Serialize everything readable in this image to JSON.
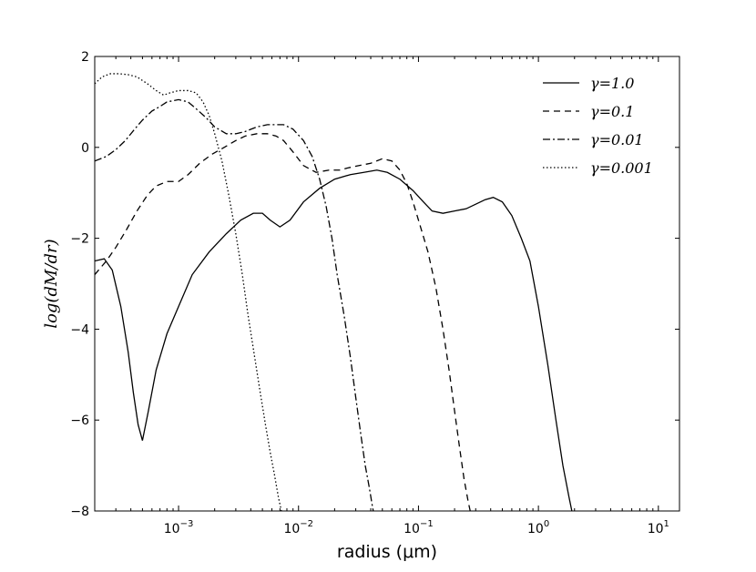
{
  "chart_data": {
    "type": "line",
    "xscale": "log",
    "xlim": [
      0.0002,
      15
    ],
    "ylim": [
      -8,
      2
    ],
    "xlabel": "radius (μm)",
    "ylabel": "log(dM/dr)",
    "yticks": [
      2,
      0,
      -2,
      -4,
      -6,
      -8
    ],
    "ytick_labels": [
      "2",
      "0",
      "−2",
      "−4",
      "−6",
      "−8"
    ],
    "xticks": [
      0.001,
      0.01,
      0.1,
      1,
      10
    ],
    "xtick_labels": [
      {
        "base": "10",
        "exp": "-3"
      },
      {
        "base": "10",
        "exp": "-2"
      },
      {
        "base": "10",
        "exp": "-1"
      },
      {
        "base": "10",
        "exp": "0"
      },
      {
        "base": "10",
        "exp": "1"
      }
    ],
    "legend_position": "top-right",
    "grid": false,
    "series": [
      {
        "name": "γ=1.0",
        "style": "solid",
        "x": [
          0.0002,
          0.00024,
          0.00028,
          0.00033,
          0.00038,
          0.00042,
          0.00046,
          0.0005,
          0.00056,
          0.00065,
          0.0008,
          0.001,
          0.0013,
          0.0018,
          0.0025,
          0.0033,
          0.0042,
          0.005,
          0.0058,
          0.007,
          0.0085,
          0.011,
          0.015,
          0.02,
          0.027,
          0.035,
          0.045,
          0.055,
          0.07,
          0.09,
          0.11,
          0.13,
          0.16,
          0.2,
          0.25,
          0.3,
          0.36,
          0.42,
          0.5,
          0.6,
          0.72,
          0.85,
          1.0,
          1.2,
          1.4,
          1.6,
          1.8,
          1.9
        ],
        "y": [
          -2.5,
          -2.45,
          -2.7,
          -3.5,
          -4.5,
          -5.4,
          -6.1,
          -6.45,
          -5.8,
          -4.9,
          -4.1,
          -3.5,
          -2.8,
          -2.3,
          -1.9,
          -1.6,
          -1.45,
          -1.45,
          -1.6,
          -1.75,
          -1.6,
          -1.2,
          -0.9,
          -0.7,
          -0.6,
          -0.55,
          -0.5,
          -0.55,
          -0.7,
          -0.95,
          -1.2,
          -1.4,
          -1.45,
          -1.4,
          -1.35,
          -1.25,
          -1.15,
          -1.1,
          -1.2,
          -1.5,
          -2.0,
          -2.5,
          -3.5,
          -4.8,
          -6.0,
          -7.0,
          -7.7,
          -8.0
        ]
      },
      {
        "name": "γ=0.1",
        "style": "dashed",
        "x": [
          0.0002,
          0.00025,
          0.0003,
          0.00037,
          0.00045,
          0.00055,
          0.00065,
          0.0008,
          0.001,
          0.0012,
          0.0015,
          0.0019,
          0.0024,
          0.003,
          0.0036,
          0.0045,
          0.0055,
          0.0065,
          0.0075,
          0.009,
          0.011,
          0.014,
          0.018,
          0.022,
          0.026,
          0.032,
          0.04,
          0.05,
          0.06,
          0.07,
          0.08,
          0.09,
          0.1,
          0.12,
          0.14,
          0.16,
          0.18,
          0.2,
          0.22,
          0.24,
          0.26,
          0.27
        ],
        "y": [
          -2.8,
          -2.5,
          -2.2,
          -1.8,
          -1.4,
          -1.05,
          -0.85,
          -0.75,
          -0.75,
          -0.6,
          -0.35,
          -0.15,
          0.0,
          0.15,
          0.25,
          0.3,
          0.3,
          0.25,
          0.15,
          -0.1,
          -0.4,
          -0.55,
          -0.5,
          -0.5,
          -0.45,
          -0.4,
          -0.35,
          -0.25,
          -0.3,
          -0.5,
          -0.8,
          -1.2,
          -1.6,
          -2.3,
          -3.1,
          -4.0,
          -4.9,
          -5.8,
          -6.6,
          -7.3,
          -7.8,
          -8.0
        ]
      },
      {
        "name": "γ=0.01",
        "style": "dashdot",
        "x": [
          0.0002,
          0.00025,
          0.0003,
          0.00036,
          0.00043,
          0.0005,
          0.0006,
          0.0007,
          0.0008,
          0.001,
          0.0012,
          0.0014,
          0.0017,
          0.002,
          0.0025,
          0.003,
          0.0036,
          0.0045,
          0.0055,
          0.0065,
          0.0075,
          0.009,
          0.011,
          0.013,
          0.015,
          0.017,
          0.019,
          0.021,
          0.024,
          0.027,
          0.03,
          0.033,
          0.036,
          0.039,
          0.041,
          0.042
        ],
        "y": [
          -0.3,
          -0.2,
          -0.05,
          0.15,
          0.4,
          0.6,
          0.8,
          0.9,
          1.0,
          1.05,
          1.0,
          0.85,
          0.65,
          0.45,
          0.3,
          0.3,
          0.35,
          0.45,
          0.5,
          0.5,
          0.5,
          0.4,
          0.15,
          -0.2,
          -0.7,
          -1.3,
          -2.0,
          -2.8,
          -3.7,
          -4.6,
          -5.5,
          -6.3,
          -7.0,
          -7.5,
          -7.85,
          -8.0
        ]
      },
      {
        "name": "γ=0.001",
        "style": "dotted",
        "x": [
          0.0002,
          0.00023,
          0.00027,
          0.00032,
          0.00038,
          0.00045,
          0.00055,
          0.00065,
          0.00075,
          0.00085,
          0.001,
          0.0012,
          0.0014,
          0.0016,
          0.0018,
          0.002,
          0.0023,
          0.0026,
          0.003,
          0.0034,
          0.0038,
          0.0043,
          0.0048,
          0.0053,
          0.0058,
          0.0063,
          0.0068,
          0.0072
        ],
        "y": [
          1.4,
          1.55,
          1.62,
          1.62,
          1.6,
          1.55,
          1.4,
          1.25,
          1.15,
          1.2,
          1.25,
          1.25,
          1.2,
          1.0,
          0.7,
          0.3,
          -0.3,
          -1.0,
          -1.9,
          -2.8,
          -3.7,
          -4.6,
          -5.4,
          -6.1,
          -6.7,
          -7.2,
          -7.7,
          -8.0
        ]
      }
    ]
  }
}
